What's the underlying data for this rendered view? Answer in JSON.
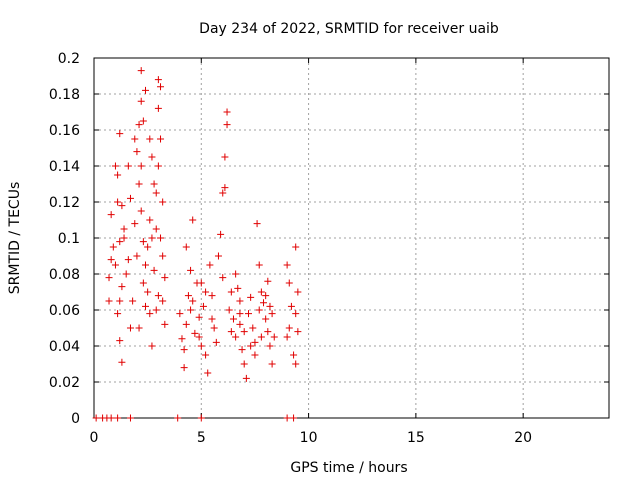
{
  "chart_data": {
    "type": "scatter",
    "title": "Day 234 of 2022, SRMTID for receiver uaib",
    "xlabel": "GPS time / hours",
    "ylabel": "SRMTID / TECUs",
    "xlim": [
      0,
      24
    ],
    "ylim": [
      0,
      0.2
    ],
    "x_ticks": [
      0,
      5,
      10,
      15,
      20
    ],
    "y_ticks": [
      0,
      0.02,
      0.04,
      0.06,
      0.08,
      0.1,
      0.12,
      0.14,
      0.16,
      0.18,
      0.2
    ],
    "x_tick_labels": [
      "0",
      "5",
      "10",
      "15",
      "20"
    ],
    "y_tick_labels": [
      "0",
      "0.02",
      "0.04",
      "0.06",
      "0.08",
      "0.1",
      "0.12",
      "0.14",
      "0.16",
      "0.18",
      "0.2"
    ],
    "grid": true,
    "marker": "plus",
    "color": "#e00000",
    "series": [
      {
        "name": "SRMTID",
        "points": [
          [
            0.1,
            0
          ],
          [
            0.4,
            0
          ],
          [
            0.6,
            0
          ],
          [
            0.8,
            0
          ],
          [
            1.1,
            0
          ],
          [
            1.7,
            0
          ],
          [
            3.9,
            0
          ],
          [
            5.0,
            0
          ],
          [
            9.0,
            0
          ],
          [
            9.3,
            0
          ],
          [
            0.8,
            0.113
          ],
          [
            0.9,
            0.095
          ],
          [
            0.7,
            0.078
          ],
          [
            0.8,
            0.088
          ],
          [
            0.7,
            0.065
          ],
          [
            1.0,
            0.14
          ],
          [
            1.1,
            0.12
          ],
          [
            1.2,
            0.158
          ],
          [
            1.1,
            0.135
          ],
          [
            1.3,
            0.118
          ],
          [
            1.0,
            0.085
          ],
          [
            1.2,
            0.098
          ],
          [
            1.3,
            0.073
          ],
          [
            1.1,
            0.058
          ],
          [
            1.2,
            0.043
          ],
          [
            1.3,
            0.031
          ],
          [
            1.2,
            0.065
          ],
          [
            1.4,
            0.105
          ],
          [
            1.6,
            0.14
          ],
          [
            1.7,
            0.122
          ],
          [
            1.6,
            0.088
          ],
          [
            1.8,
            0.065
          ],
          [
            1.7,
            0.05
          ],
          [
            1.9,
            0.108
          ],
          [
            1.9,
            0.155
          ],
          [
            2.0,
            0.148
          ],
          [
            2.1,
            0.163
          ],
          [
            2.2,
            0.193
          ],
          [
            2.2,
            0.176
          ],
          [
            2.3,
            0.165
          ],
          [
            2.4,
            0.182
          ],
          [
            2.1,
            0.13
          ],
          [
            2.2,
            0.115
          ],
          [
            2.3,
            0.098
          ],
          [
            2.0,
            0.09
          ],
          [
            2.4,
            0.085
          ],
          [
            2.5,
            0.095
          ],
          [
            2.6,
            0.155
          ],
          [
            2.7,
            0.145
          ],
          [
            2.8,
            0.13
          ],
          [
            2.9,
            0.125
          ],
          [
            2.6,
            0.11
          ],
          [
            2.7,
            0.1
          ],
          [
            2.8,
            0.082
          ],
          [
            2.5,
            0.07
          ],
          [
            2.6,
            0.058
          ],
          [
            2.7,
            0.04
          ],
          [
            2.9,
            0.06
          ],
          [
            3.0,
            0.188
          ],
          [
            3.1,
            0.184
          ],
          [
            3.0,
            0.172
          ],
          [
            3.1,
            0.155
          ],
          [
            3.0,
            0.14
          ],
          [
            3.2,
            0.12
          ],
          [
            3.1,
            0.1
          ],
          [
            3.2,
            0.09
          ],
          [
            3.3,
            0.078
          ],
          [
            3.0,
            0.068
          ],
          [
            3.3,
            0.052
          ],
          [
            2.3,
            0.075
          ],
          [
            2.4,
            0.062
          ],
          [
            2.1,
            0.05
          ],
          [
            1.5,
            0.08
          ],
          [
            4.0,
            0.058
          ],
          [
            4.1,
            0.044
          ],
          [
            4.2,
            0.038
          ],
          [
            4.3,
            0.052
          ],
          [
            4.4,
            0.068
          ],
          [
            4.5,
            0.082
          ],
          [
            4.3,
            0.095
          ],
          [
            4.6,
            0.11
          ],
          [
            4.5,
            0.06
          ],
          [
            4.7,
            0.047
          ],
          [
            4.2,
            0.028
          ],
          [
            4.8,
            0.075
          ],
          [
            4.9,
            0.056
          ],
          [
            5.0,
            0.04
          ],
          [
            5.1,
            0.062
          ],
          [
            5.2,
            0.035
          ],
          [
            5.3,
            0.025
          ],
          [
            5.2,
            0.07
          ],
          [
            5.4,
            0.085
          ],
          [
            5.5,
            0.068
          ],
          [
            5.6,
            0.05
          ],
          [
            5.7,
            0.042
          ],
          [
            5.5,
            0.055
          ],
          [
            5.8,
            0.09
          ],
          [
            5.9,
            0.102
          ],
          [
            6.0,
            0.125
          ],
          [
            6.1,
            0.145
          ],
          [
            6.2,
            0.17
          ],
          [
            6.2,
            0.163
          ],
          [
            6.1,
            0.128
          ],
          [
            6.0,
            0.078
          ],
          [
            6.3,
            0.06
          ],
          [
            6.4,
            0.048
          ],
          [
            6.5,
            0.055
          ],
          [
            6.6,
            0.08
          ],
          [
            6.7,
            0.072
          ],
          [
            6.8,
            0.065
          ],
          [
            6.6,
            0.045
          ],
          [
            6.9,
            0.038
          ],
          [
            7.0,
            0.03
          ],
          [
            7.1,
            0.022
          ],
          [
            6.8,
            0.052
          ],
          [
            7.2,
            0.058
          ],
          [
            7.3,
            0.067
          ],
          [
            7.4,
            0.05
          ],
          [
            7.5,
            0.042
          ],
          [
            7.6,
            0.108
          ],
          [
            7.7,
            0.085
          ],
          [
            7.8,
            0.07
          ],
          [
            7.9,
            0.064
          ],
          [
            8.0,
            0.055
          ],
          [
            8.1,
            0.048
          ],
          [
            8.2,
            0.04
          ],
          [
            8.3,
            0.03
          ],
          [
            8.0,
            0.068
          ],
          [
            8.1,
            0.076
          ],
          [
            7.5,
            0.035
          ],
          [
            7.7,
            0.06
          ],
          [
            8.4,
            0.045
          ],
          [
            8.3,
            0.058
          ],
          [
            9.0,
            0.085
          ],
          [
            9.1,
            0.075
          ],
          [
            9.2,
            0.062
          ],
          [
            9.1,
            0.05
          ],
          [
            9.3,
            0.035
          ],
          [
            9.0,
            0.045
          ],
          [
            9.4,
            0.095
          ],
          [
            9.5,
            0.07
          ],
          [
            9.4,
            0.058
          ],
          [
            9.5,
            0.048
          ],
          [
            9.4,
            0.03
          ],
          [
            4.6,
            0.065
          ],
          [
            5.0,
            0.075
          ],
          [
            6.4,
            0.07
          ],
          [
            7.0,
            0.048
          ],
          [
            7.3,
            0.04
          ],
          [
            7.8,
            0.045
          ],
          [
            2.2,
            0.14
          ],
          [
            1.4,
            0.1
          ],
          [
            2.9,
            0.105
          ],
          [
            3.2,
            0.065
          ],
          [
            4.9,
            0.045
          ],
          [
            6.8,
            0.058
          ],
          [
            8.2,
            0.062
          ]
        ]
      }
    ]
  }
}
